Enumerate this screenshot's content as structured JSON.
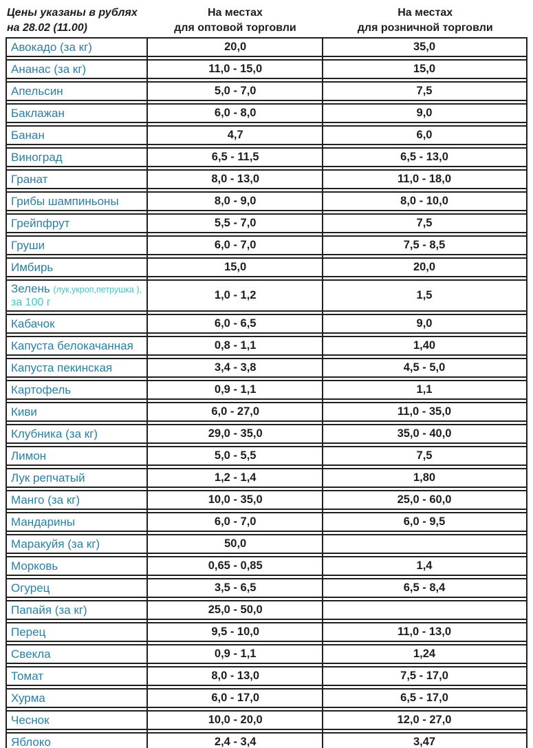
{
  "meta_note": {
    "line1": "Цены указаны в рублях",
    "line2": "на 28.02 (11.00)"
  },
  "columns": {
    "wholesale": {
      "line1": "На местах",
      "line2": "для оптовой торговли"
    },
    "retail": {
      "line1": "На местах",
      "line2": "для розничной торговли"
    }
  },
  "colors": {
    "product_name": "#2b7fa3",
    "note_cyan": "#3cc8c3",
    "text_dark": "#1d1d1d",
    "border": "#1f1f1f",
    "background": "#ffffff"
  },
  "rows": [
    {
      "name": "Авокадо (за кг)",
      "wholesale": "20,0",
      "retail": "35,0"
    },
    {
      "name": "Ананас (за кг)",
      "wholesale": "11,0 - 15,0",
      "retail": "15,0"
    },
    {
      "name": "Апельсин",
      "wholesale": "5,0 - 7,0",
      "retail": "7,5"
    },
    {
      "name": "Баклажан",
      "wholesale": "6,0 - 8,0",
      "retail": "9,0"
    },
    {
      "name": "Банан",
      "wholesale": "4,7",
      "retail": "6,0"
    },
    {
      "name": "Виноград",
      "wholesale": "6,5 - 11,5",
      "retail": "6,5 - 13,0"
    },
    {
      "name": "Гранат",
      "wholesale": "8,0 - 13,0",
      "retail": "11,0 - 18,0"
    },
    {
      "name": "Грибы шампиньоны",
      "wholesale": "8,0 - 9,0",
      "retail": "8,0 - 10,0"
    },
    {
      "name": "Грейпфрут",
      "wholesale": "5,5 - 7,0",
      "retail": "7,5"
    },
    {
      "name": "Груши",
      "wholesale": "6,0 - 7,0",
      "retail": "7,5 - 8,5"
    },
    {
      "name": "Имбирь",
      "wholesale": "15,0",
      "retail": "20,0"
    },
    {
      "name": "Зелень",
      "name_note": "(лук,укроп,петрушка ),",
      "name_note2": "за 100 г",
      "wholesale": "1,0 - 1,2",
      "retail": "1,5"
    },
    {
      "name": "Кабачок",
      "wholesale": "6,0 - 6,5",
      "retail": "9,0"
    },
    {
      "name": "Капуста белокачанная",
      "wholesale": "0,8 - 1,1",
      "retail": "1,40"
    },
    {
      "name": "Капуста пекинская",
      "wholesale": "3,4 - 3,8",
      "retail": "4,5 - 5,0"
    },
    {
      "name": "Картофель",
      "wholesale": "0,9 - 1,1",
      "retail": "1,1"
    },
    {
      "name": "Киви",
      "wholesale": "6,0 - 27,0",
      "retail": "11,0 - 35,0"
    },
    {
      "name": "Клубника (за кг)",
      "wholesale": "29,0 - 35,0",
      "retail": "35,0 - 40,0"
    },
    {
      "name": "Лимон",
      "wholesale": "5,0 - 5,5",
      "retail": "7,5"
    },
    {
      "name": "Лук репчатый",
      "wholesale": "1,2 - 1,4",
      "retail": "1,80"
    },
    {
      "name": "Манго (за кг)",
      "wholesale": "10,0 - 35,0",
      "retail": "25,0 - 60,0"
    },
    {
      "name": "Мандарины",
      "wholesale": "6,0 - 7,0",
      "retail": "6,0 - 9,5"
    },
    {
      "name": "Маракуйя (за кг)",
      "wholesale": "50,0",
      "retail": ""
    },
    {
      "name": "Морковь",
      "wholesale": "0,65 - 0,85",
      "retail": "1,4"
    },
    {
      "name": "Огурец",
      "wholesale": "3,5 - 6,5",
      "retail": "6,5 - 8,4"
    },
    {
      "name": "Папайя (за кг)",
      "wholesale": "25,0 - 50,0",
      "retail": ""
    },
    {
      "name": "Перец",
      "wholesale": "9,5 - 10,0",
      "retail": "11,0 - 13,0"
    },
    {
      "name": "Свекла",
      "wholesale": "0,9 - 1,1",
      "retail": "1,24"
    },
    {
      "name": "Томат",
      "wholesale": "8,0 - 13,0",
      "retail": "7,5 - 17,0"
    },
    {
      "name": "Хурма",
      "wholesale": "6,0 - 17,0",
      "retail": "6,5 - 17,0"
    },
    {
      "name": "Чеснок",
      "wholesale": "10,0 - 20,0",
      "retail": "12,0 - 27,0"
    },
    {
      "name": "Яблоко",
      "wholesale": "2,4 - 3,4",
      "retail": "3,47"
    }
  ]
}
